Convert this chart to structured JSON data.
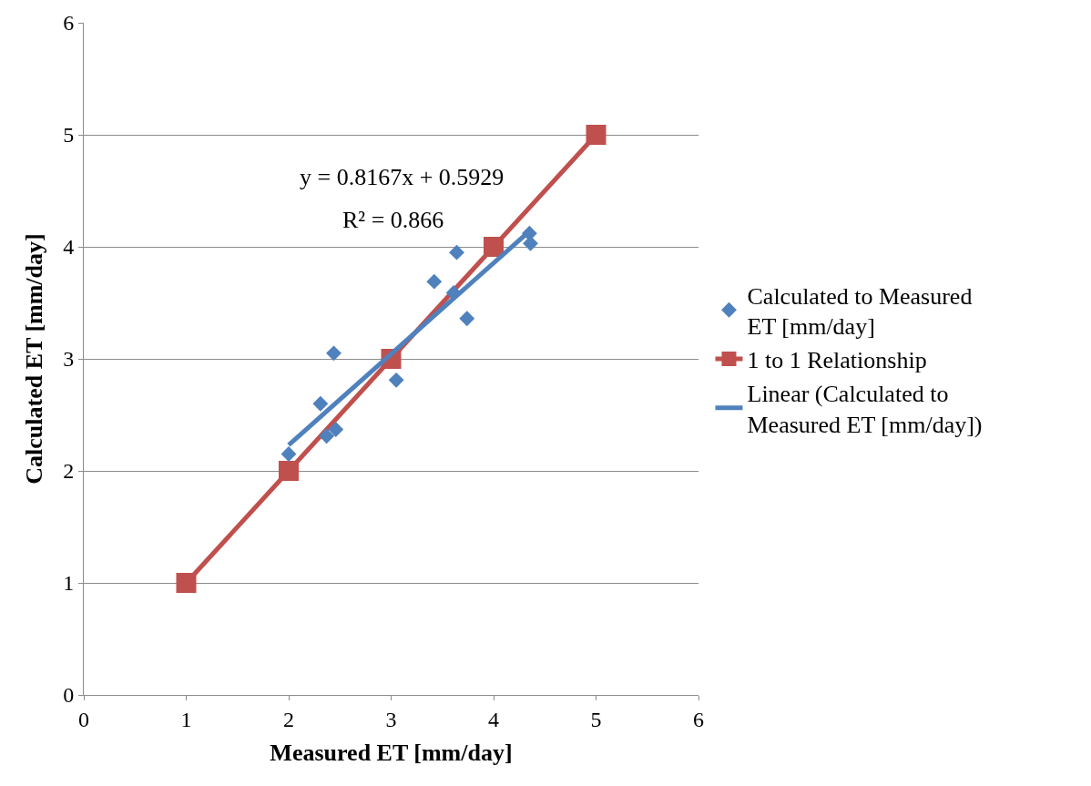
{
  "chart_data": {
    "type": "scatter",
    "xlabel": "Measured ET [mm/day]",
    "ylabel": "Calculated ET [mm/day]",
    "xlim": [
      0,
      6
    ],
    "xticks": [
      0,
      1,
      2,
      3,
      4,
      5,
      6
    ],
    "ylim": [
      0,
      6
    ],
    "yticks": [
      0,
      1,
      2,
      3,
      4,
      5,
      6
    ],
    "grid": "y",
    "legend": "right",
    "annotations": [
      "y = 0.8167x + 0.5929",
      "R² = 0.866"
    ],
    "series": [
      {
        "name": "Calculated to Measured ET [mm/day]",
        "color": "#4f81bd",
        "marker": "diamond",
        "x": [
          2.0,
          2.31,
          2.44,
          2.37,
          2.46,
          3.05,
          3.42,
          3.64,
          3.61,
          3.74,
          4.35,
          4.36
        ],
        "values": [
          2.15,
          2.6,
          3.05,
          2.31,
          2.37,
          2.81,
          3.69,
          3.95,
          3.59,
          3.36,
          4.12,
          4.03
        ]
      },
      {
        "name": "1 to 1 Relationship",
        "type": "line",
        "color": "#c0504d",
        "marker": "square",
        "x": [
          1,
          2,
          3,
          4,
          5
        ],
        "values": [
          1,
          2,
          3,
          4,
          5
        ]
      },
      {
        "name": "Linear (Calculated to Measured ET [mm/day])",
        "type": "line",
        "color": "#4f81bd",
        "marker": "none",
        "x": [
          2.0,
          4.35
        ],
        "values": [
          2.23,
          4.14
        ]
      }
    ]
  }
}
